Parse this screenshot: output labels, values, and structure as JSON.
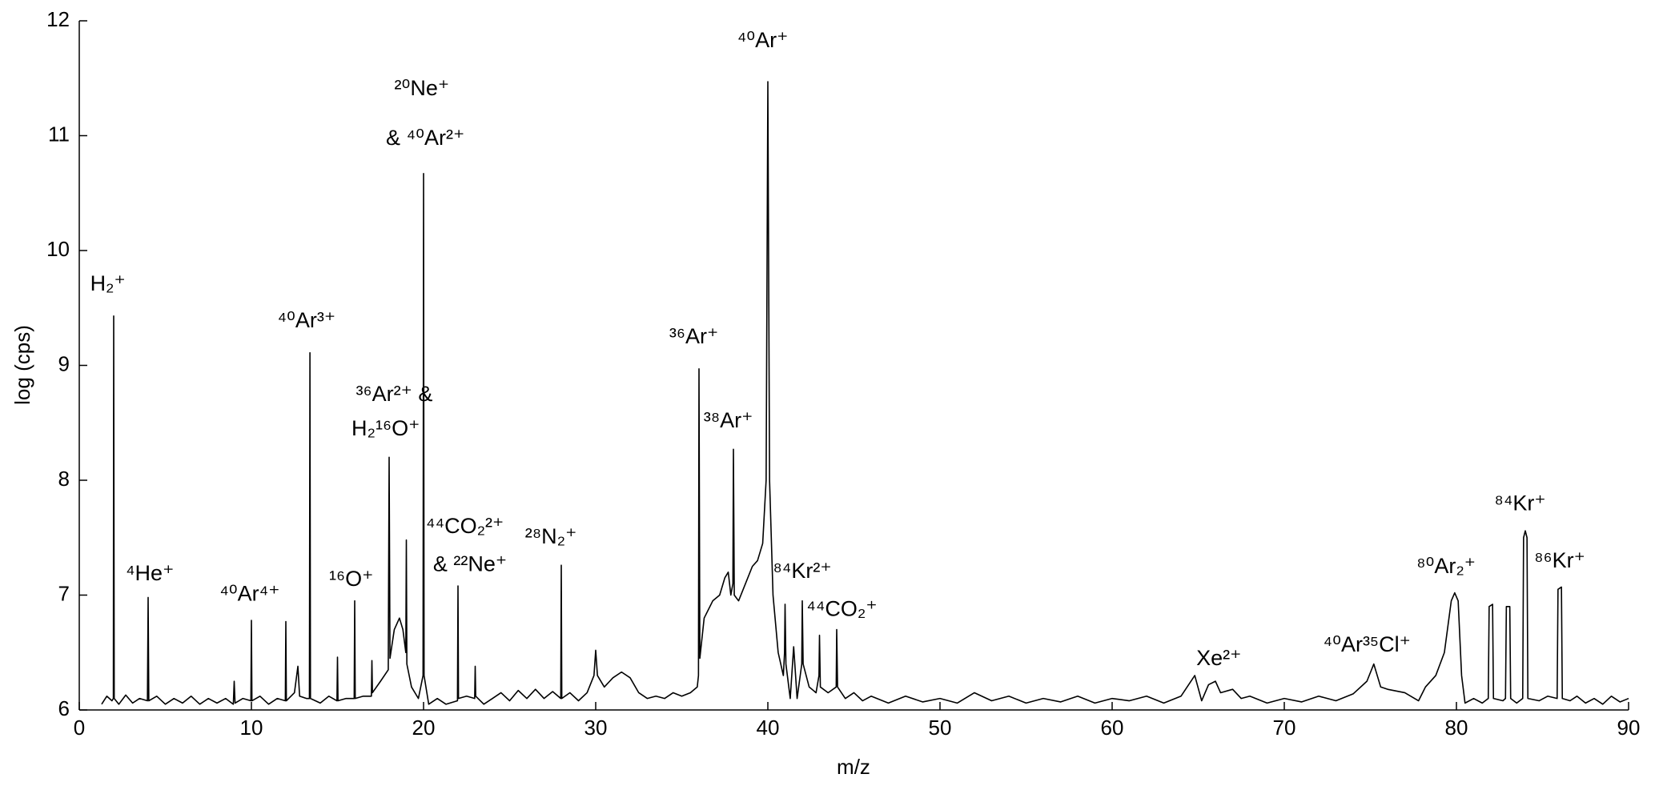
{
  "chart_data": {
    "type": "line",
    "x_label": "m/z",
    "y_label": "log (cps)",
    "xlim": [
      0,
      90
    ],
    "xticks": [
      0,
      10,
      20,
      30,
      40,
      50,
      60,
      70,
      80,
      90
    ],
    "ylim": [
      6,
      12
    ],
    "yticks": [
      6,
      7,
      8,
      9,
      10,
      11,
      12
    ],
    "color": "#000000",
    "x": [
      1.3,
      1.6,
      1.9,
      1.98,
      2.0,
      2.03,
      2.3,
      2.7,
      3.1,
      3.5,
      3.96,
      4.0,
      4.04,
      4.5,
      5.0,
      5.5,
      6.0,
      6.5,
      7.0,
      7.5,
      8.0,
      8.5,
      8.95,
      9.0,
      9.05,
      9.5,
      9.97,
      10.0,
      10.03,
      10.5,
      11.0,
      11.5,
      11.97,
      12.0,
      12.03,
      12.5,
      12.7,
      12.8,
      13.2,
      13.37,
      13.4,
      13.43,
      14,
      14.5,
      14.97,
      15.0,
      15.03,
      15.5,
      15.97,
      16.0,
      16.03,
      16.5,
      16.97,
      17.0,
      17.03,
      17.5,
      17.95,
      18.0,
      18.05,
      18.3,
      18.6,
      18.8,
      18.97,
      19.0,
      19.03,
      19.3,
      19.7,
      19.97,
      20.0,
      20.03,
      20.3,
      20.8,
      21.3,
      21.97,
      22.0,
      22.03,
      22.5,
      22.97,
      23.0,
      23.03,
      23.5,
      24,
      24.5,
      25,
      25.5,
      26,
      26.5,
      27,
      27.5,
      27.97,
      28.0,
      28.03,
      28.5,
      29,
      29.5,
      29.9,
      30.0,
      30.1,
      30.5,
      31,
      31.5,
      32,
      32.5,
      33,
      33.5,
      34,
      34.5,
      35,
      35.5,
      35.9,
      35.97,
      36.0,
      36.05,
      36.3,
      36.8,
      37.2,
      37.5,
      37.7,
      37.85,
      37.97,
      38.0,
      38.05,
      38.3,
      38.7,
      39.1,
      39.4,
      39.7,
      39.9,
      40.0,
      40.1,
      40.3,
      40.6,
      40.9,
      40.97,
      41.0,
      41.05,
      41.3,
      41.5,
      41.7,
      41.97,
      42.0,
      42.05,
      42.4,
      42.8,
      42.97,
      43.0,
      43.05,
      43.5,
      43.97,
      44.0,
      44.05,
      44.5,
      45,
      45.5,
      46,
      47,
      48,
      49,
      50,
      51,
      52,
      53,
      54,
      55,
      56,
      57,
      58,
      59,
      60,
      61,
      62,
      63,
      64,
      64.8,
      65.2,
      65.6,
      66,
      66.3,
      67,
      67.5,
      68,
      69,
      70,
      71,
      72,
      73,
      74,
      74.8,
      75.2,
      75.6,
      76,
      77,
      77.8,
      78.2,
      78.8,
      79.3,
      79.7,
      79.9,
      80.1,
      80.3,
      80.5,
      81,
      81.5,
      81.85,
      81.9,
      82.1,
      82.15,
      82.7,
      82.85,
      82.9,
      83.1,
      83.15,
      83.5,
      83.85,
      83.9,
      84.0,
      84.1,
      84.15,
      84.8,
      85.3,
      85.85,
      85.9,
      86.1,
      86.15,
      86.6,
      87,
      87.5,
      88,
      88.5,
      89,
      89.5,
      90
    ],
    "values": [
      6.05,
      6.12,
      6.08,
      6.1,
      9.43,
      6.1,
      6.05,
      6.13,
      6.06,
      6.1,
      6.08,
      6.98,
      6.08,
      6.12,
      6.05,
      6.1,
      6.06,
      6.12,
      6.05,
      6.1,
      6.06,
      6.1,
      6.05,
      6.25,
      6.06,
      6.1,
      6.08,
      6.78,
      6.08,
      6.12,
      6.05,
      6.1,
      6.08,
      6.77,
      6.08,
      6.15,
      6.38,
      6.12,
      6.1,
      6.1,
      9.11,
      6.1,
      6.06,
      6.12,
      6.08,
      6.46,
      6.08,
      6.1,
      6.1,
      6.95,
      6.1,
      6.12,
      6.12,
      6.43,
      6.15,
      6.25,
      6.35,
      8.2,
      6.45,
      6.7,
      6.8,
      6.7,
      6.5,
      7.48,
      6.4,
      6.2,
      6.1,
      6.3,
      10.67,
      6.3,
      6.05,
      6.1,
      6.05,
      6.08,
      7.08,
      6.1,
      6.12,
      6.1,
      6.38,
      6.12,
      6.05,
      6.1,
      6.15,
      6.08,
      6.17,
      6.1,
      6.18,
      6.1,
      6.16,
      6.1,
      7.26,
      6.1,
      6.15,
      6.08,
      6.15,
      6.3,
      6.52,
      6.3,
      6.2,
      6.28,
      6.33,
      6.28,
      6.15,
      6.1,
      6.12,
      6.1,
      6.15,
      6.12,
      6.15,
      6.2,
      6.3,
      8.97,
      6.45,
      6.8,
      6.95,
      7.0,
      7.15,
      7.2,
      7.0,
      7.1,
      8.27,
      7.0,
      6.95,
      7.1,
      7.25,
      7.3,
      7.45,
      8.0,
      11.47,
      8.0,
      7.0,
      6.5,
      6.3,
      6.5,
      6.92,
      6.4,
      6.1,
      6.55,
      6.1,
      6.4,
      6.95,
      6.4,
      6.2,
      6.15,
      6.3,
      6.65,
      6.2,
      6.15,
      6.2,
      6.7,
      6.2,
      6.1,
      6.15,
      6.08,
      6.12,
      6.06,
      6.12,
      6.07,
      6.1,
      6.06,
      6.15,
      6.08,
      6.12,
      6.06,
      6.1,
      6.07,
      6.12,
      6.06,
      6.1,
      6.08,
      6.12,
      6.06,
      6.12,
      6.3,
      6.08,
      6.22,
      6.25,
      6.15,
      6.18,
      6.1,
      6.12,
      6.06,
      6.1,
      6.07,
      6.12,
      6.08,
      6.14,
      6.25,
      6.4,
      6.2,
      6.18,
      6.15,
      6.08,
      6.2,
      6.3,
      6.5,
      6.95,
      7.02,
      6.95,
      6.3,
      6.06,
      6.1,
      6.06,
      6.1,
      6.9,
      6.92,
      6.1,
      6.08,
      6.1,
      6.9,
      6.9,
      6.1,
      6.06,
      6.1,
      7.5,
      7.56,
      7.5,
      6.1,
      6.08,
      6.12,
      6.1,
      7.05,
      7.07,
      6.1,
      6.08,
      6.12,
      6.06,
      6.1,
      6.05,
      6.12,
      6.07,
      6.1
    ],
    "annotations": [
      {
        "text": "H₂⁺",
        "x": 1.66,
        "y": 9.7
      },
      {
        "text": "⁴He⁺",
        "x": 4.1,
        "y": 7.18
      },
      {
        "text": "⁴⁰Ar⁴⁺",
        "x": 9.9,
        "y": 7.0
      },
      {
        "text": "⁴⁰Ar³⁺",
        "x": 13.2,
        "y": 9.38
      },
      {
        "text": "³⁶Ar²⁺ &",
        "x": 18.3,
        "y": 8.74
      },
      {
        "text": "H₂¹⁶O⁺",
        "x": 17.8,
        "y": 8.44
      },
      {
        "text": "¹⁶O⁺",
        "x": 15.8,
        "y": 7.13
      },
      {
        "text": "²⁰Ne⁺",
        "x": 19.9,
        "y": 11.4
      },
      {
        "text": "& ⁴⁰Ar²⁺",
        "x": 20.1,
        "y": 10.97
      },
      {
        "text": "⁴⁴CO₂²⁺",
        "x": 22.4,
        "y": 7.59
      },
      {
        "text": "& ²²Ne⁺",
        "x": 22.7,
        "y": 7.26
      },
      {
        "text": "²⁸N₂⁺",
        "x": 27.4,
        "y": 7.5
      },
      {
        "text": "³⁶Ar⁺",
        "x": 35.7,
        "y": 9.24
      },
      {
        "text": "³⁸Ar⁺",
        "x": 37.7,
        "y": 8.51
      },
      {
        "text": "⁴⁰Ar⁺",
        "x": 39.7,
        "y": 11.82
      },
      {
        "text": "⁸⁴Kr²⁺",
        "x": 42.0,
        "y": 7.2
      },
      {
        "text": "⁴⁴CO₂⁺",
        "x": 44.3,
        "y": 6.87
      },
      {
        "text": "Xe²⁺",
        "x": 66.2,
        "y": 6.44
      },
      {
        "text": "⁴⁰Ar³⁵Cl⁺",
        "x": 74.8,
        "y": 6.56
      },
      {
        "text": "⁸⁰Ar₂⁺",
        "x": 79.4,
        "y": 7.24
      },
      {
        "text": "⁸⁴Kr⁺",
        "x": 83.7,
        "y": 7.79
      },
      {
        "text": "⁸⁶Kr⁺",
        "x": 86.0,
        "y": 7.29
      }
    ]
  }
}
